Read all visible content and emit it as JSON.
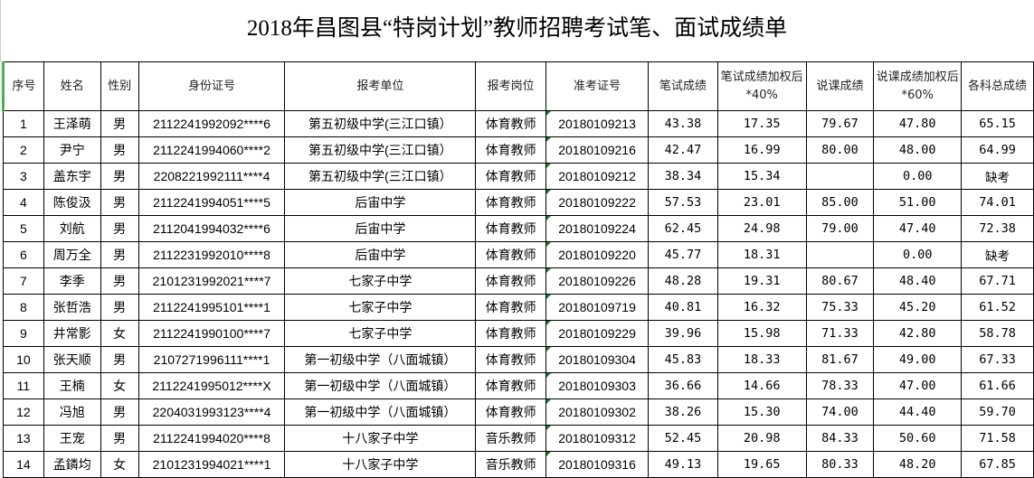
{
  "title": "2018年昌图县“特岗计划”教师招聘考试笔、面试成绩单",
  "headers": [
    "序号",
    "姓名",
    "性别",
    "身份证号",
    "报考单位",
    "报考岗位",
    "准考证号",
    "笔试成绩",
    "笔试成绩加权后*40%",
    "说课成绩",
    "说课成绩加权后*60%",
    "各科总成绩"
  ],
  "rows": [
    [
      "1",
      "王泽萌",
      "男",
      "2112241992092****6",
      "第五初级中学(三江口镇）",
      "体育教师",
      "20180109213",
      "43.38",
      "17.35",
      "79.67",
      "47.80",
      "65.15"
    ],
    [
      "2",
      "尹宁",
      "男",
      "2112241994060****2",
      "第五初级中学(三江口镇）",
      "体育教师",
      "20180109216",
      "42.47",
      "16.99",
      "80.00",
      "48.00",
      "64.99"
    ],
    [
      "3",
      "盖东宇",
      "男",
      "2208221992111****4",
      "第五初级中学(三江口镇）",
      "体育教师",
      "20180109212",
      "38.34",
      "15.34",
      "",
      "0.00",
      "缺考"
    ],
    [
      "4",
      "陈俊汲",
      "男",
      "2112241994051****5",
      "后宙中学",
      "体育教师",
      "20180109222",
      "57.53",
      "23.01",
      "85.00",
      "51.00",
      "74.01"
    ],
    [
      "5",
      "刘航",
      "男",
      "2112041994032****6",
      "后宙中学",
      "体育教师",
      "20180109224",
      "62.45",
      "24.98",
      "79.00",
      "47.40",
      "72.38"
    ],
    [
      "6",
      "周万全",
      "男",
      "2112231992010****8",
      "后宙中学",
      "体育教师",
      "20180109220",
      "45.77",
      "18.31",
      "",
      "0.00",
      "缺考"
    ],
    [
      "7",
      "李季",
      "男",
      "2101231992021****7",
      "七家子中学",
      "体育教师",
      "20180109226",
      "48.28",
      "19.31",
      "80.67",
      "48.40",
      "67.71"
    ],
    [
      "8",
      "张哲浩",
      "男",
      "2112241995101****1",
      "七家子中学",
      "体育教师",
      "20180109719",
      "40.81",
      "16.32",
      "75.33",
      "45.20",
      "61.52"
    ],
    [
      "9",
      "井常影",
      "女",
      "2112241990100****7",
      "七家子中学",
      "体育教师",
      "20180109229",
      "39.96",
      "15.98",
      "71.33",
      "42.80",
      "58.78"
    ],
    [
      "10",
      "张天顺",
      "男",
      "2107271996111****1",
      "第一初级中学（八面城镇）",
      "体育教师",
      "20180109304",
      "45.83",
      "18.33",
      "81.67",
      "49.00",
      "67.33"
    ],
    [
      "11",
      "王楠",
      "女",
      "2112241995012****X",
      "第一初级中学（八面城镇）",
      "体育教师",
      "20180109303",
      "36.66",
      "14.66",
      "78.33",
      "47.00",
      "61.66"
    ],
    [
      "12",
      "冯旭",
      "男",
      "2204031993123****4",
      "第一初级中学（八面城镇）",
      "体育教师",
      "20180109302",
      "38.26",
      "15.30",
      "74.00",
      "44.40",
      "59.70"
    ],
    [
      "13",
      "王宠",
      "男",
      "2112241994020****8",
      "十八家子中学",
      "音乐教师",
      "20180109312",
      "52.45",
      "20.98",
      "84.33",
      "50.60",
      "71.58"
    ],
    [
      "14",
      "孟鏻均",
      "女",
      "2101231994021****1",
      "十八家子中学",
      "音乐教师",
      "20180109316",
      "49.13",
      "19.65",
      "80.33",
      "48.20",
      "67.85"
    ]
  ]
}
